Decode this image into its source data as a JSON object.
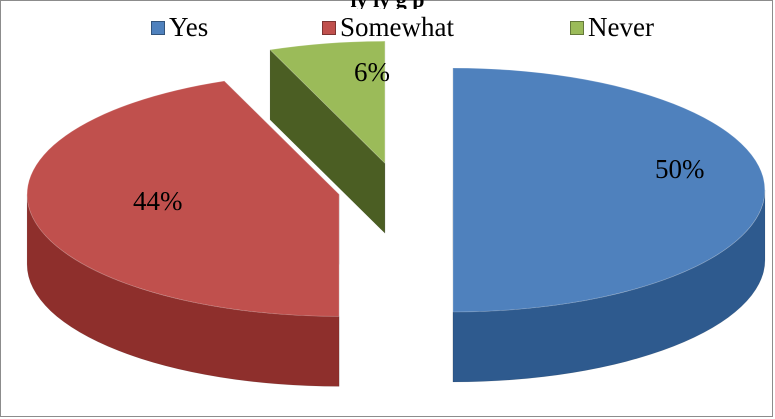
{
  "chart_data": {
    "type": "pie",
    "title": "",
    "categories": [
      "Yes",
      "Somewhat",
      "Never"
    ],
    "values": [
      50,
      44,
      6
    ],
    "labels": [
      "50%",
      "44%",
      "6%"
    ],
    "colors": [
      "#4F81BD",
      "#C0504D",
      "#9BBB59"
    ],
    "side_colors": [
      "#2E5A8E",
      "#8E2F2C",
      "#4B5E23"
    ],
    "legend_position": "top",
    "exploded": true,
    "three_d": true
  },
  "title_strip": "ly   ly                                                    g p"
}
